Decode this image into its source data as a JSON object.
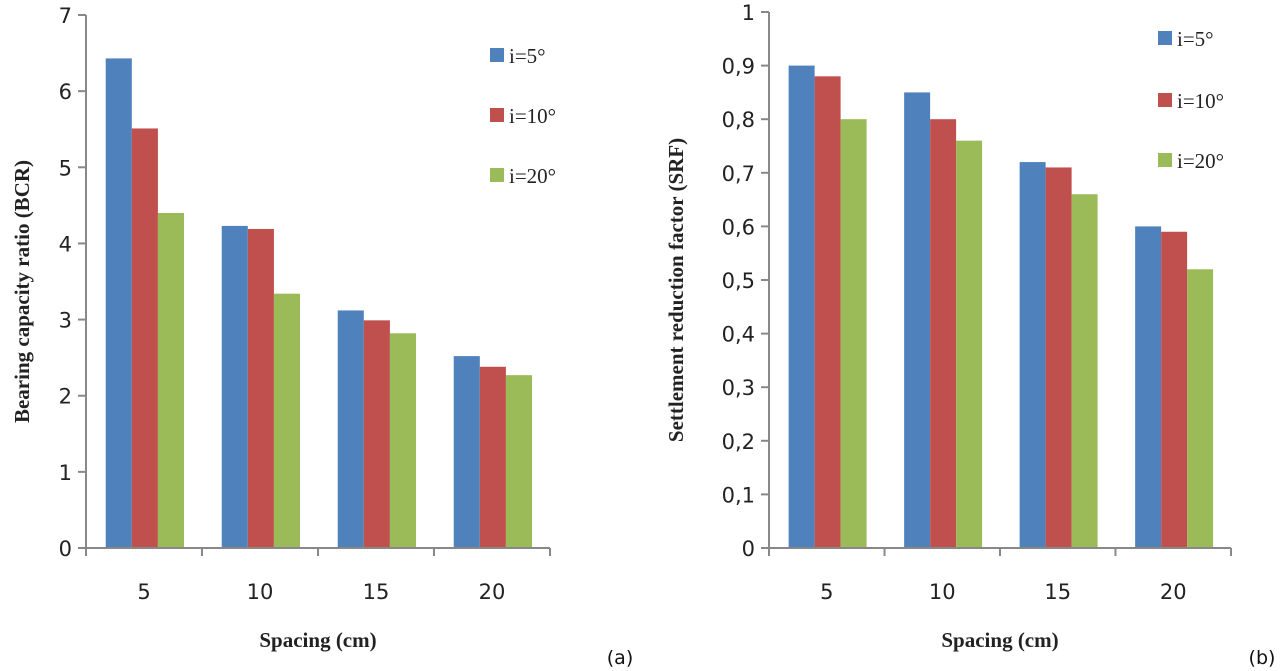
{
  "chart_data": [
    {
      "type": "bar",
      "panel_label": "(a)",
      "categories": [
        "5",
        "10",
        "15",
        "20"
      ],
      "xlabel": "Spacing (cm)",
      "ylabel": "Bearing capacity ratio (BCR)",
      "ylim": [
        0,
        7
      ],
      "yticks": [
        "0",
        "1",
        "2",
        "3",
        "4",
        "5",
        "6",
        "7"
      ],
      "grid": false,
      "legend": "top-right",
      "series": [
        {
          "name": "i=5°",
          "color": "#4f81bd",
          "values": [
            6.43,
            4.23,
            3.12,
            2.52
          ]
        },
        {
          "name": "i=10°",
          "color": "#c0504d",
          "values": [
            5.51,
            4.19,
            2.99,
            2.38
          ]
        },
        {
          "name": "i=20°",
          "color": "#9bbb59",
          "values": [
            4.4,
            3.34,
            2.82,
            2.27
          ]
        }
      ]
    },
    {
      "type": "bar",
      "panel_label": "(b)",
      "categories": [
        "5",
        "10",
        "15",
        "20"
      ],
      "xlabel": "Spacing (cm)",
      "ylabel": "Settlement reduction factor (SRF)",
      "ylim": [
        0,
        1
      ],
      "yticks": [
        "0",
        "0,1",
        "0,2",
        "0,3",
        "0,4",
        "0,5",
        "0,6",
        "0,7",
        "0,8",
        "0,9",
        "1"
      ],
      "grid": false,
      "legend": "top-right",
      "series": [
        {
          "name": "i=5°",
          "color": "#4f81bd",
          "values": [
            0.9,
            0.85,
            0.72,
            0.6
          ]
        },
        {
          "name": "i=10°",
          "color": "#c0504d",
          "values": [
            0.88,
            0.8,
            0.71,
            0.59
          ]
        },
        {
          "name": "i=20°",
          "color": "#9bbb59",
          "values": [
            0.8,
            0.76,
            0.66,
            0.52
          ]
        }
      ]
    }
  ]
}
